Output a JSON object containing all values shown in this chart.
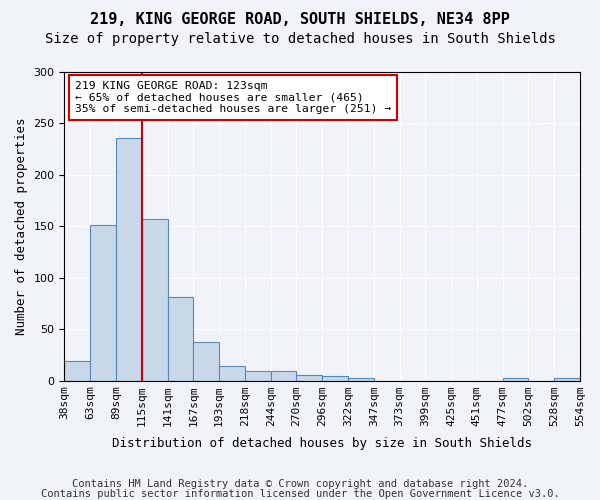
{
  "title1": "219, KING GEORGE ROAD, SOUTH SHIELDS, NE34 8PP",
  "title2": "Size of property relative to detached houses in South Shields",
  "xlabel": "Distribution of detached houses by size in South Shields",
  "ylabel": "Number of detached properties",
  "bin_labels": [
    "38sqm",
    "63sqm",
    "89sqm",
    "115sqm",
    "141sqm",
    "167sqm",
    "193sqm",
    "218sqm",
    "244sqm",
    "270sqm",
    "296sqm",
    "322sqm",
    "347sqm",
    "373sqm",
    "399sqm",
    "425sqm",
    "451sqm",
    "477sqm",
    "502sqm",
    "528sqm",
    "554sqm"
  ],
  "bar_values": [
    19,
    151,
    235,
    157,
    81,
    37,
    14,
    9,
    9,
    5,
    4,
    2,
    0,
    0,
    0,
    0,
    0,
    2,
    0,
    2
  ],
  "bar_color": "#c8d8e8",
  "bar_edge_color": "#5588bb",
  "vline_x_index": 3,
  "vline_color": "#cc0000",
  "annotation_text": "219 KING GEORGE ROAD: 123sqm\n← 65% of detached houses are smaller (465)\n35% of semi-detached houses are larger (251) →",
  "annotation_box_color": "#ffffff",
  "annotation_box_edge": "#cc0000",
  "ylim": [
    0,
    300
  ],
  "yticks": [
    0,
    50,
    100,
    150,
    200,
    250,
    300
  ],
  "footnote1": "Contains HM Land Registry data © Crown copyright and database right 2024.",
  "footnote2": "Contains public sector information licensed under the Open Government Licence v3.0.",
  "background_color": "#f0f4f8",
  "title1_fontsize": 11,
  "title2_fontsize": 10,
  "xlabel_fontsize": 9,
  "ylabel_fontsize": 9,
  "tick_fontsize": 8,
  "footnote_fontsize": 7.5
}
